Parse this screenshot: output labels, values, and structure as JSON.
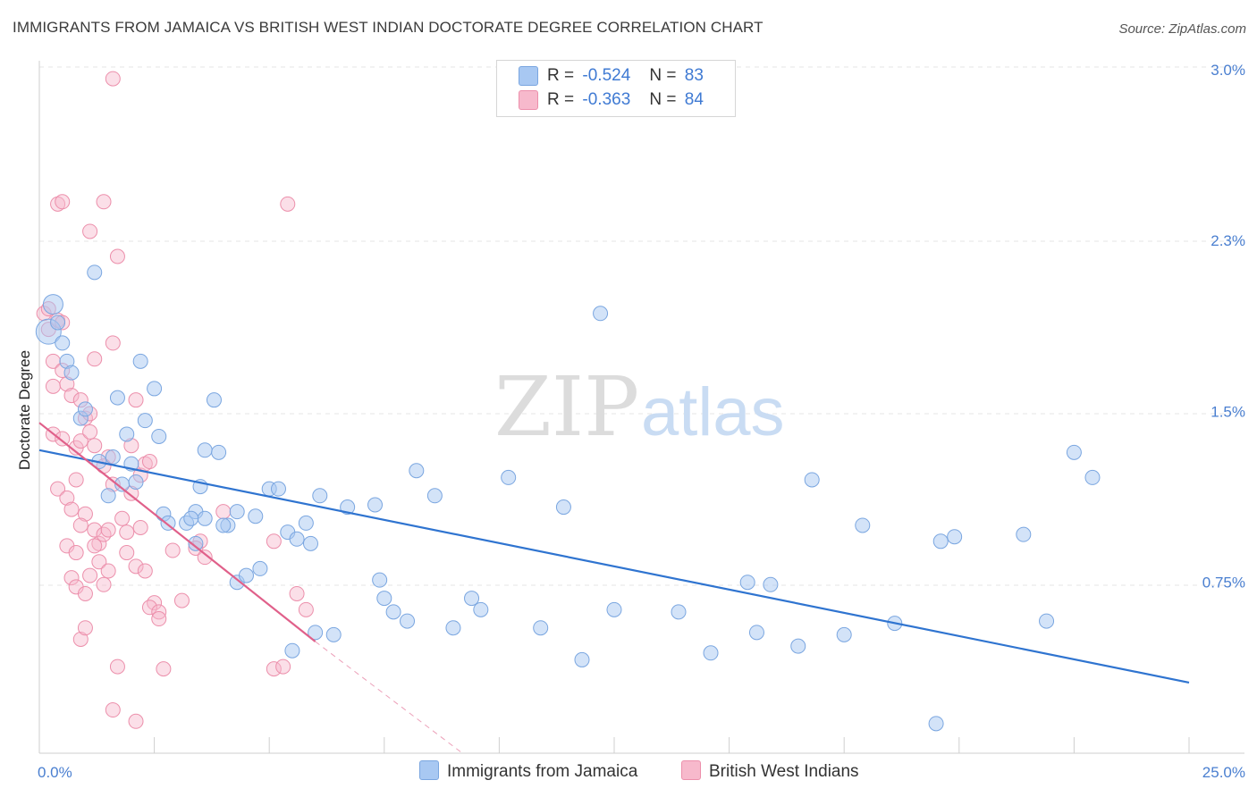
{
  "header": {
    "title": "IMMIGRANTS FROM JAMAICA VS BRITISH WEST INDIAN DOCTORATE DEGREE CORRELATION CHART",
    "source": "Source: ZipAtlas.com"
  },
  "watermark": {
    "zip": "ZIP",
    "atlas": "atlas"
  },
  "legend": {
    "rows": [
      {
        "r_label": "R =",
        "r_value": "-0.524",
        "n_label": "N =",
        "n_value": "83",
        "color": "#a8c8f2"
      },
      {
        "r_label": "R =",
        "r_value": "-0.363",
        "n_label": "N =",
        "n_value": "84",
        "color": "#f7b9cc"
      }
    ]
  },
  "bottom_legend": [
    {
      "label": "Immigrants from Jamaica",
      "color": "#a8c8f2"
    },
    {
      "label": "British West Indians",
      "color": "#f7b9cc"
    }
  ],
  "chart_data": {
    "type": "scatter",
    "xlabel": "",
    "ylabel": "Doctorate Degree",
    "xlim": [
      0,
      25
    ],
    "ylim": [
      0,
      3.1
    ],
    "x_tick_labels": [
      "0.0%",
      "25.0%"
    ],
    "y_ticks": [
      0.75,
      1.5,
      2.25,
      3.0
    ],
    "y_tick_labels": [
      "0.75%",
      "1.5%",
      "2.3%",
      "3.0%"
    ],
    "grid": true,
    "colors": {
      "blue_fill": "#a8c8f2",
      "blue_stroke": "#7aa6e0",
      "blue_line": "#2f74d0",
      "pink_fill": "#f7b9cc",
      "pink_stroke": "#ec8fab",
      "pink_line": "#e0608a"
    },
    "series": [
      {
        "name": "Immigrants from Jamaica",
        "color": "#a8c8f2",
        "points": [
          [
            0.2,
            1.85
          ],
          [
            0.3,
            1.97
          ],
          [
            0.4,
            1.89
          ],
          [
            0.6,
            1.72
          ],
          [
            0.9,
            1.47
          ],
          [
            1.0,
            1.51
          ],
          [
            1.2,
            2.11
          ],
          [
            1.3,
            1.28
          ],
          [
            1.6,
            1.3
          ],
          [
            1.9,
            1.4
          ],
          [
            2.2,
            1.72
          ],
          [
            2.5,
            1.6
          ],
          [
            2.3,
            1.46
          ],
          [
            1.7,
            1.56
          ],
          [
            1.8,
            1.18
          ],
          [
            1.5,
            1.13
          ],
          [
            2.1,
            1.19
          ],
          [
            2.7,
            1.05
          ],
          [
            2.8,
            1.01
          ],
          [
            3.2,
            1.01
          ],
          [
            3.4,
            1.06
          ],
          [
            3.6,
            1.03
          ],
          [
            3.3,
            1.03
          ],
          [
            3.4,
            0.92
          ],
          [
            3.5,
            1.17
          ],
          [
            3.6,
            1.33
          ],
          [
            3.8,
            1.55
          ],
          [
            3.9,
            1.32
          ],
          [
            4.1,
            1.0
          ],
          [
            4.3,
            1.06
          ],
          [
            4.7,
            1.04
          ],
          [
            4.3,
            0.75
          ],
          [
            4.5,
            0.78
          ],
          [
            4.8,
            0.81
          ],
          [
            5.0,
            1.16
          ],
          [
            5.2,
            1.16
          ],
          [
            5.4,
            0.97
          ],
          [
            5.6,
            0.94
          ],
          [
            5.8,
            1.01
          ],
          [
            5.9,
            0.92
          ],
          [
            6.0,
            0.53
          ],
          [
            6.4,
            0.52
          ],
          [
            5.5,
            0.45
          ],
          [
            6.1,
            1.13
          ],
          [
            6.7,
            1.08
          ],
          [
            7.3,
            1.09
          ],
          [
            7.5,
            0.68
          ],
          [
            7.7,
            0.62
          ],
          [
            8.0,
            0.58
          ],
          [
            7.4,
            0.76
          ],
          [
            8.2,
            1.24
          ],
          [
            8.6,
            1.13
          ],
          [
            9.0,
            0.55
          ],
          [
            9.4,
            0.68
          ],
          [
            9.6,
            0.63
          ],
          [
            10.2,
            1.21
          ],
          [
            10.9,
            0.55
          ],
          [
            11.4,
            1.08
          ],
          [
            11.8,
            0.41
          ],
          [
            12.2,
            1.93
          ],
          [
            12.5,
            0.63
          ],
          [
            13.9,
            0.62
          ],
          [
            14.6,
            0.44
          ],
          [
            15.4,
            0.75
          ],
          [
            15.6,
            0.53
          ],
          [
            15.9,
            0.74
          ],
          [
            16.5,
            0.47
          ],
          [
            16.8,
            1.2
          ],
          [
            17.5,
            0.52
          ],
          [
            17.9,
            1.0
          ],
          [
            18.6,
            0.57
          ],
          [
            19.6,
            0.93
          ],
          [
            19.9,
            0.95
          ],
          [
            21.4,
            0.96
          ],
          [
            21.9,
            0.58
          ],
          [
            22.5,
            1.32
          ],
          [
            22.9,
            1.21
          ],
          [
            19.5,
            0.13
          ],
          [
            0.5,
            1.8
          ],
          [
            0.7,
            1.67
          ],
          [
            2.0,
            1.27
          ],
          [
            4.0,
            1.0
          ],
          [
            2.6,
            1.39
          ]
        ]
      },
      {
        "name": "British West Indians",
        "color": "#f7b9cc",
        "points": [
          [
            0.1,
            1.93
          ],
          [
            0.2,
            1.86
          ],
          [
            0.3,
            1.72
          ],
          [
            0.2,
            1.95
          ],
          [
            0.4,
            1.9
          ],
          [
            0.5,
            1.68
          ],
          [
            0.3,
            1.61
          ],
          [
            0.6,
            1.62
          ],
          [
            0.7,
            1.57
          ],
          [
            0.3,
            1.4
          ],
          [
            0.5,
            1.38
          ],
          [
            0.8,
            1.34
          ],
          [
            0.9,
            1.37
          ],
          [
            1.0,
            1.47
          ],
          [
            1.1,
            1.41
          ],
          [
            1.2,
            1.35
          ],
          [
            1.1,
            1.49
          ],
          [
            1.5,
            1.3
          ],
          [
            1.4,
            1.26
          ],
          [
            0.4,
            1.16
          ],
          [
            0.6,
            1.12
          ],
          [
            0.8,
            1.2
          ],
          [
            1.6,
            1.18
          ],
          [
            0.7,
            1.07
          ],
          [
            1.0,
            1.05
          ],
          [
            0.9,
            1.0
          ],
          [
            1.2,
            0.98
          ],
          [
            1.3,
            0.92
          ],
          [
            1.4,
            0.96
          ],
          [
            0.6,
            0.91
          ],
          [
            0.8,
            0.88
          ],
          [
            1.2,
            0.91
          ],
          [
            1.3,
            0.84
          ],
          [
            1.5,
            0.8
          ],
          [
            1.1,
            0.78
          ],
          [
            0.7,
            0.77
          ],
          [
            1.4,
            0.74
          ],
          [
            0.8,
            0.73
          ],
          [
            1.0,
            0.7
          ],
          [
            2.1,
            0.82
          ],
          [
            2.2,
            0.99
          ],
          [
            2.3,
            0.8
          ],
          [
            2.5,
            0.66
          ],
          [
            2.4,
            0.64
          ],
          [
            2.6,
            0.62
          ],
          [
            3.1,
            0.67
          ],
          [
            3.5,
            0.93
          ],
          [
            3.4,
            0.9
          ],
          [
            3.6,
            0.86
          ],
          [
            1.9,
            0.97
          ],
          [
            1.9,
            0.88
          ],
          [
            2.1,
            1.55
          ],
          [
            2.2,
            1.22
          ],
          [
            2.3,
            1.27
          ],
          [
            2.0,
            1.35
          ],
          [
            2.4,
            1.28
          ],
          [
            1.6,
            1.8
          ],
          [
            1.7,
            2.18
          ],
          [
            1.4,
            2.42
          ],
          [
            1.1,
            2.29
          ],
          [
            0.4,
            2.41
          ],
          [
            0.5,
            2.42
          ],
          [
            1.6,
            2.96
          ],
          [
            5.4,
            2.41
          ],
          [
            4.0,
            1.06
          ],
          [
            5.1,
            0.93
          ],
          [
            5.6,
            0.7
          ],
          [
            5.8,
            0.63
          ],
          [
            5.1,
            0.37
          ],
          [
            5.3,
            0.38
          ],
          [
            1.7,
            0.38
          ],
          [
            2.7,
            0.37
          ],
          [
            1.6,
            0.19
          ],
          [
            2.1,
            0.14
          ],
          [
            0.9,
            0.5
          ],
          [
            1.0,
            0.55
          ],
          [
            0.5,
            1.89
          ],
          [
            1.2,
            1.73
          ],
          [
            2.0,
            1.14
          ],
          [
            2.9,
            0.89
          ],
          [
            1.5,
            0.98
          ],
          [
            0.9,
            1.55
          ],
          [
            1.8,
            1.03
          ],
          [
            2.6,
            0.59
          ]
        ]
      }
    ],
    "trend_lines": [
      {
        "series": "Immigrants from Jamaica",
        "from": [
          0,
          1.33
        ],
        "to": [
          25,
          0.31
        ],
        "style": "solid"
      },
      {
        "series": "British West Indians",
        "from": [
          0,
          1.45
        ],
        "to": [
          6.0,
          0.49
        ],
        "style": "solid"
      },
      {
        "series": "British West Indians",
        "from": [
          6.0,
          0.49
        ],
        "to": [
          9.2,
          0.0
        ],
        "style": "dashed"
      }
    ]
  }
}
